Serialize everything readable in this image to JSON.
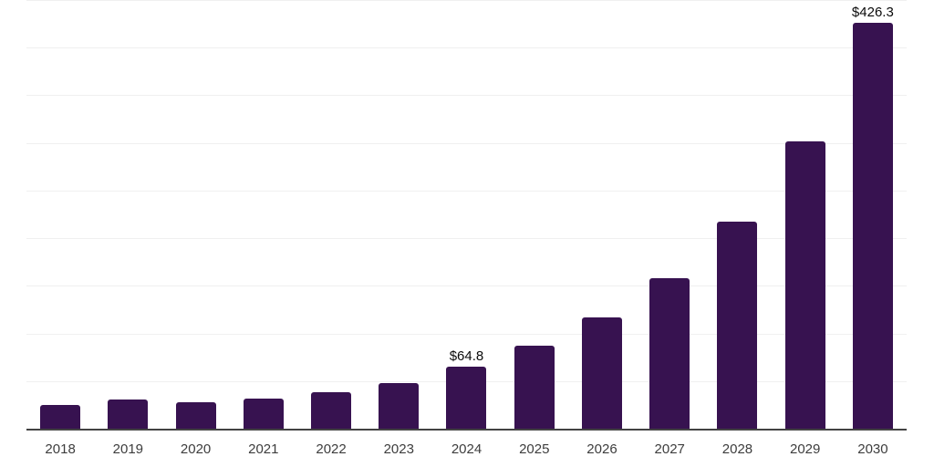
{
  "chart_data": {
    "type": "bar",
    "title": "",
    "xlabel": "",
    "ylabel": "",
    "categories": [
      "2018",
      "2019",
      "2020",
      "2021",
      "2022",
      "2023",
      "2024",
      "2025",
      "2026",
      "2027",
      "2028",
      "2029",
      "2030"
    ],
    "values": [
      25.4,
      30.3,
      28.0,
      31.3,
      38.3,
      47.8,
      64.8,
      86.8,
      116.4,
      158.5,
      217.8,
      302.0,
      426.3
    ],
    "data_labels": {
      "2024": "$64.8",
      "2030": "$426.3"
    },
    "ylim": [
      0,
      450
    ],
    "gridline_step": 50,
    "grid": true,
    "y_axis_labels_visible": false,
    "legend_position": "none",
    "colors": {
      "bar": "#371250",
      "gridline": "#f0f0f0",
      "axis_line": "#434343",
      "tick_label": "#3d3d3d",
      "value_label": "#0a0a0a",
      "background": "#ffffff"
    }
  }
}
